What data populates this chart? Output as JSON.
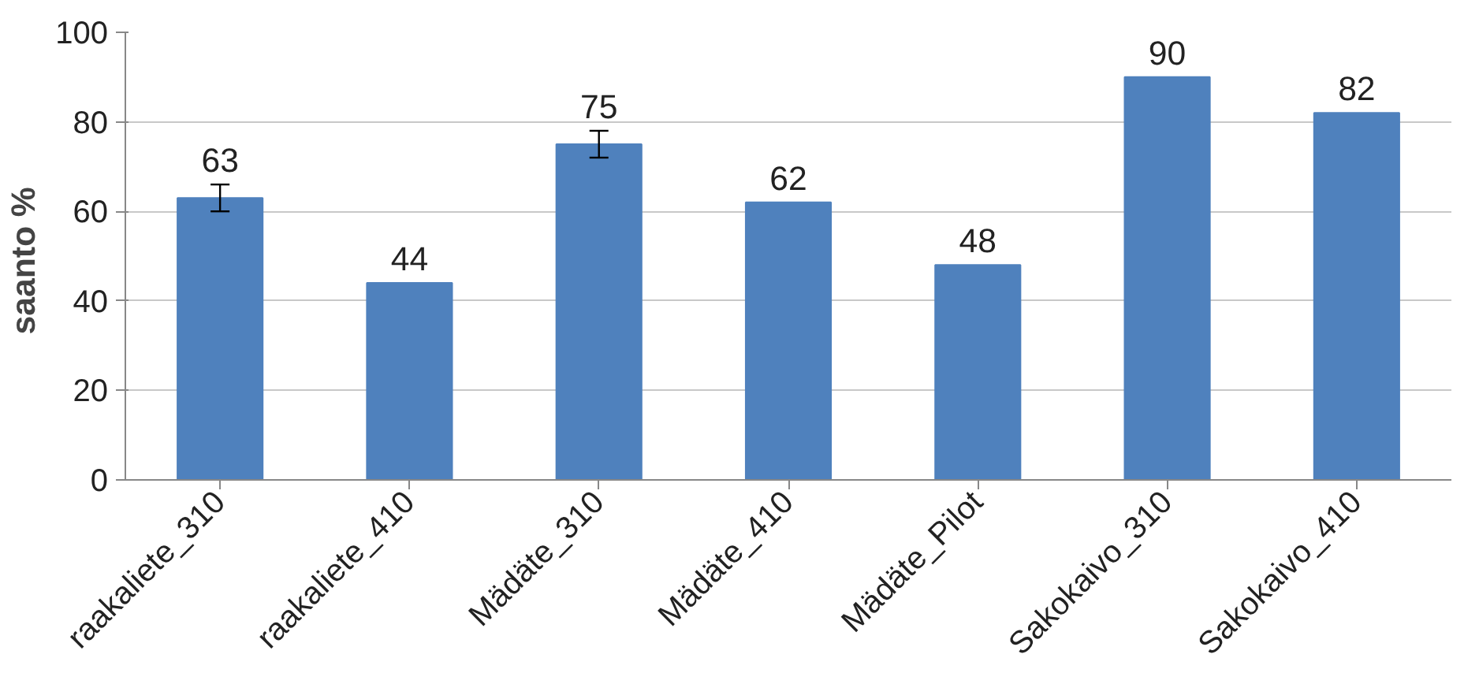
{
  "chart_data": {
    "type": "bar",
    "ylabel": "saanto  %",
    "categories": [
      "raakaliete_310",
      "raakaliete_410",
      "Mädäte_310",
      "Mädäte_410",
      "Mädäte_Pilot",
      "Sakokaivo_310",
      "Sakokaivo_410"
    ],
    "values": [
      63,
      44,
      75,
      62,
      48,
      90,
      82
    ],
    "errors": [
      3,
      null,
      3,
      null,
      null,
      null,
      null
    ],
    "color": "#4f81bd",
    "ylim": [
      0,
      100
    ],
    "yticks": [
      0,
      20,
      40,
      60,
      80,
      100
    ],
    "grid": "y",
    "data_labels": true
  }
}
